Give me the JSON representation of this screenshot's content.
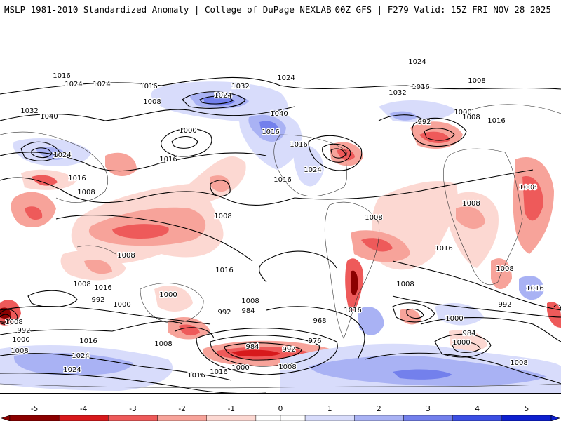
{
  "header": {
    "left": "MSLP 1981-2010 Standardized Anomaly | College of DuPage NEXLAB",
    "right": "00Z GFS | F279 Valid: 15Z FRI NOV 28 2025"
  },
  "colors": {
    "neg5": "#8b0000",
    "neg4": "#d7191c",
    "neg3": "#ee5a5a",
    "neg2": "#f7a39a",
    "neg1": "#fcd8d2",
    "zero": "#ffffff",
    "pos1": "#d8dcfb",
    "pos2": "#a9b2f4",
    "pos3": "#7380ec",
    "pos4": "#3b4ee3",
    "pos5": "#0d1fcf"
  },
  "map": {
    "isobar_labels": [
      {
        "text": "1016",
        "id": "l1"
      },
      {
        "text": "1024",
        "id": "l2"
      },
      {
        "text": "1024",
        "id": "l3"
      },
      {
        "text": "1016",
        "id": "l4"
      },
      {
        "text": "1008",
        "id": "l5"
      },
      {
        "text": "1032",
        "id": "l6"
      },
      {
        "text": "1040",
        "id": "l7"
      },
      {
        "text": "1024",
        "id": "l8"
      },
      {
        "text": "1016",
        "id": "l9"
      },
      {
        "text": "1008",
        "id": "l10"
      },
      {
        "text": "1000",
        "id": "l11"
      },
      {
        "text": "1016",
        "id": "l12"
      },
      {
        "text": "1024",
        "id": "l13"
      },
      {
        "text": "1032",
        "id": "l14"
      },
      {
        "text": "1024",
        "id": "l15"
      },
      {
        "text": "1040",
        "id": "l16"
      },
      {
        "text": "1016",
        "id": "l17"
      },
      {
        "text": "1016",
        "id": "l18"
      },
      {
        "text": "1024",
        "id": "l19"
      },
      {
        "text": "1016",
        "id": "l20"
      },
      {
        "text": "1024",
        "id": "l21"
      },
      {
        "text": "1032",
        "id": "l22"
      },
      {
        "text": "1016",
        "id": "l23"
      },
      {
        "text": "1008",
        "id": "l24"
      },
      {
        "text": "992",
        "id": "l25"
      },
      {
        "text": "1000",
        "id": "l26"
      },
      {
        "text": "1008",
        "id": "l27"
      },
      {
        "text": "1016",
        "id": "l28"
      },
      {
        "text": "1008",
        "id": "l29"
      },
      {
        "text": "1008",
        "id": "l30"
      },
      {
        "text": "1008",
        "id": "l31"
      },
      {
        "text": "1008",
        "id": "l32"
      },
      {
        "text": "1016",
        "id": "l33"
      },
      {
        "text": "1008",
        "id": "l34"
      },
      {
        "text": "1016",
        "id": "l35"
      },
      {
        "text": "1008",
        "id": "l36"
      },
      {
        "text": "1016",
        "id": "l37"
      },
      {
        "text": "1008",
        "id": "l38"
      },
      {
        "text": "992",
        "id": "l39"
      },
      {
        "text": "1000",
        "id": "l40"
      },
      {
        "text": "1000",
        "id": "l41"
      },
      {
        "text": "992",
        "id": "l42"
      },
      {
        "text": "984",
        "id": "l43"
      },
      {
        "text": "968",
        "id": "l44"
      },
      {
        "text": "1008",
        "id": "l45"
      },
      {
        "text": "976",
        "id": "l46"
      },
      {
        "text": "984",
        "id": "l47"
      },
      {
        "text": "992",
        "id": "l48"
      },
      {
        "text": "1016",
        "id": "l49"
      },
      {
        "text": "1008",
        "id": "l50"
      },
      {
        "text": "1000",
        "id": "l51"
      },
      {
        "text": "984",
        "id": "l52"
      },
      {
        "text": "992",
        "id": "l53"
      },
      {
        "text": "1016",
        "id": "l54"
      },
      {
        "text": "992",
        "id": "l55"
      },
      {
        "text": "1000",
        "id": "l56"
      },
      {
        "text": "1008",
        "id": "l57"
      },
      {
        "text": "1016",
        "id": "l58"
      },
      {
        "text": "1024",
        "id": "l59"
      },
      {
        "text": "1008",
        "id": "l60"
      },
      {
        "text": "1024",
        "id": "l61"
      },
      {
        "text": "1016",
        "id": "l62"
      },
      {
        "text": "1016",
        "id": "l63"
      },
      {
        "text": "1000",
        "id": "l64"
      },
      {
        "text": "1008",
        "id": "l65"
      },
      {
        "text": "1008",
        "id": "l66"
      },
      {
        "text": "1000",
        "id": "l67"
      },
      {
        "text": "1008",
        "id": "l68"
      }
    ]
  },
  "colorbar": {
    "ticks": [
      {
        "label": "-5",
        "value": -5
      },
      {
        "label": "-4",
        "value": -4
      },
      {
        "label": "-3",
        "value": -3
      },
      {
        "label": "-2",
        "value": -2
      },
      {
        "label": "-1",
        "value": -1
      },
      {
        "label": "0",
        "value": 0
      },
      {
        "label": "1",
        "value": 1
      },
      {
        "label": "2",
        "value": 2
      },
      {
        "label": "3",
        "value": 3
      },
      {
        "label": "4",
        "value": 4
      },
      {
        "label": "5",
        "value": 5
      }
    ]
  }
}
